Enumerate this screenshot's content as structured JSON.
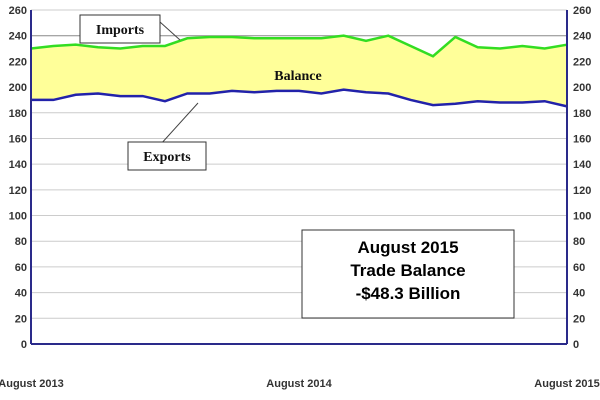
{
  "chart_data": {
    "type": "area",
    "x_tick_labels": [
      "August 2013",
      "August 2014",
      "August 2015"
    ],
    "months_count": 25,
    "ylim": [
      0,
      260
    ],
    "yticks": [
      0,
      20,
      40,
      60,
      80,
      100,
      120,
      140,
      160,
      180,
      200,
      220,
      240,
      260
    ],
    "grid": true,
    "series": [
      {
        "name": "Imports",
        "color": "#33dd22",
        "values": [
          230,
          232,
          233,
          231,
          230,
          232,
          232,
          238,
          239,
          239,
          238,
          238,
          238,
          238,
          240,
          236,
          240,
          232,
          224,
          239,
          231,
          230,
          232,
          230,
          233
        ]
      },
      {
        "name": "Exports",
        "color": "#2222aa",
        "values": [
          190,
          190,
          194,
          195,
          193,
          193,
          189,
          195,
          195,
          197,
          196,
          197,
          197,
          195,
          198,
          196,
          195,
          190,
          186,
          187,
          189,
          188,
          188,
          189,
          185
        ]
      }
    ],
    "fill_between": {
      "name": "Balance",
      "color": "#ffff99"
    },
    "annotation": {
      "line1": "August  2015",
      "line2": "Trade Balance",
      "line3": "-$48.3 Billion"
    }
  }
}
